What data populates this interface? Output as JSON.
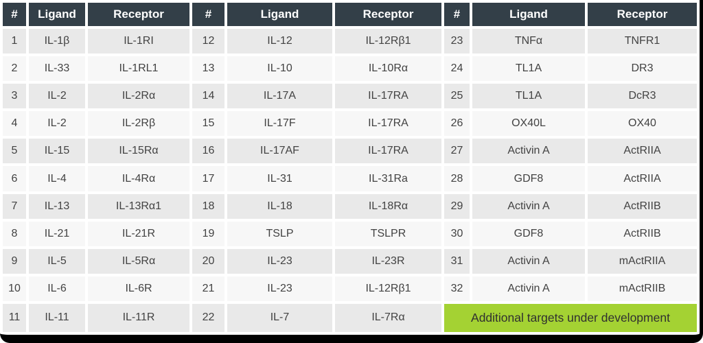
{
  "table": {
    "column_headers": [
      "#",
      "Ligand",
      "Receptor"
    ],
    "groups": [
      {
        "rows": [
          {
            "num": "1",
            "ligand": "IL-1β",
            "receptor": "IL-1RI"
          },
          {
            "num": "2",
            "ligand": "IL-33",
            "receptor": "IL-1RL1"
          },
          {
            "num": "3",
            "ligand": "IL-2",
            "receptor": "IL-2Rα"
          },
          {
            "num": "4",
            "ligand": "IL-2",
            "receptor": "IL-2Rβ"
          },
          {
            "num": "5",
            "ligand": "IL-15",
            "receptor": "IL-15Rα"
          },
          {
            "num": "6",
            "ligand": "IL-4",
            "receptor": "IL-4Rα"
          },
          {
            "num": "7",
            "ligand": "IL-13",
            "receptor": "IL-13Rα1"
          },
          {
            "num": "8",
            "ligand": "IL-21",
            "receptor": "IL-21R"
          },
          {
            "num": "9",
            "ligand": "IL-5",
            "receptor": "IL-5Rα"
          },
          {
            "num": "10",
            "ligand": "IL-6",
            "receptor": "IL-6R"
          },
          {
            "num": "11",
            "ligand": "IL-11",
            "receptor": "IL-11R"
          }
        ]
      },
      {
        "rows": [
          {
            "num": "12",
            "ligand": "IL-12",
            "receptor": "IL-12Rβ1"
          },
          {
            "num": "13",
            "ligand": "IL-10",
            "receptor": "IL-10Rα"
          },
          {
            "num": "14",
            "ligand": "IL-17A",
            "receptor": "IL-17RA"
          },
          {
            "num": "15",
            "ligand": "IL-17F",
            "receptor": "IL-17RA"
          },
          {
            "num": "16",
            "ligand": "IL-17AF",
            "receptor": "IL-17RA"
          },
          {
            "num": "17",
            "ligand": "IL-31",
            "receptor": "IL-31Ra"
          },
          {
            "num": "18",
            "ligand": "IL-18",
            "receptor": "IL-18Rα"
          },
          {
            "num": "19",
            "ligand": "TSLP",
            "receptor": "TSLPR"
          },
          {
            "num": "20",
            "ligand": "IL-23",
            "receptor": "IL-23R"
          },
          {
            "num": "21",
            "ligand": "IL-23",
            "receptor": "IL-12Rβ1"
          },
          {
            "num": "22",
            "ligand": "IL-7",
            "receptor": "IL-7Rα"
          }
        ]
      },
      {
        "rows": [
          {
            "num": "23",
            "ligand": "TNFα",
            "receptor": "TNFR1"
          },
          {
            "num": "24",
            "ligand": "TL1A",
            "receptor": "DR3"
          },
          {
            "num": "25",
            "ligand": "TL1A",
            "receptor": "DcR3"
          },
          {
            "num": "26",
            "ligand": "OX40L",
            "receptor": "OX40"
          },
          {
            "num": "27",
            "ligand": "Activin A",
            "receptor": "ActRIIA"
          },
          {
            "num": "28",
            "ligand": "GDF8",
            "receptor": "ActRIIA"
          },
          {
            "num": "29",
            "ligand": "Activin A",
            "receptor": "ActRIIB"
          },
          {
            "num": "30",
            "ligand": "GDF8",
            "receptor": "ActRIIB"
          },
          {
            "num": "31",
            "ligand": "Activin A",
            "receptor": "mActRIIA"
          },
          {
            "num": "32",
            "ligand": "Activin A",
            "receptor": "mActRIIB"
          }
        ]
      }
    ],
    "footer_note": "Additional targets under development"
  },
  "colors": {
    "header_bg": "#333f48",
    "header_text": "#ffffff",
    "row_shade": "#e9e9e9",
    "row_light": "#f7f7f7",
    "cell_text": "#424242",
    "accent_green": "#a4d233",
    "banner_text": "#303030",
    "frame_black": "#000000"
  }
}
